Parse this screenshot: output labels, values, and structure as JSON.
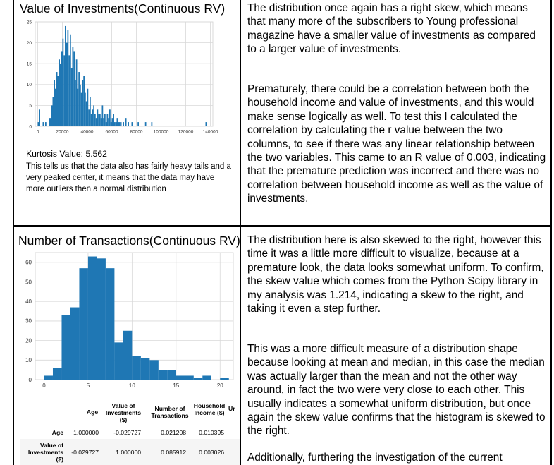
{
  "cells": {
    "investments_title": "Value of Investments(Continuous RV)",
    "kurtosis_label": "Kurtosis Value: 5.562",
    "kurtosis_note": "This tells us that the data also has fairly heavy tails and a very peaked center, it means that the data may have more outliers then a normal distribution",
    "investments_para1": "The distribution once again has a right skew, which means that many more of the subscribers to Young professional magazine have a smaller value of investments as compared to a larger value of investments.",
    "investments_para2": "Prematurely, there could be a correlation between both the household income and value of investments, and this would make sense logically as well. To test this I calculated the correlation by calculating the r value between the two columns, to see if there was any linear relationship between the two variables. This came to an R value of 0.003, indicating that the premature prediction was incorrect and there was no correlation between household income as well as the value of investments.",
    "transactions_title": "Number of Transactions(Continuous RV)",
    "transactions_para1": "The distribution here is also skewed to the right, however this time it was a little more difficult to visualize, because at a premature look, the data looks somewhat uniform. To confirm, the skew value which comes from the Python Scipy library in my analysis was 1.214, indicating a skew to the right, and taking it even a step further.",
    "transactions_para2": "This was a more difficult measure of a distribution shape because looking at mean and median, in this case the median was actually larger than the mean and not the other way around, in fact the two were very close to each other. This usually indicates a somewhat uniform distribution, but once again the skew value confirms that the histogram is skewed to the right.",
    "transactions_para3": "Additionally, furthering the investigation of the current"
  },
  "colors": {
    "bar": "#1f77b4",
    "grid": "#d9d9d9",
    "border": "#000000"
  },
  "chart_data": [
    {
      "type": "bar",
      "title": "",
      "xlabel": "",
      "ylabel": "",
      "xlim": [
        -2000,
        142000
      ],
      "ylim": [
        0,
        25
      ],
      "grid": true,
      "x_ticks": [
        "0",
        "20000",
        "40000",
        "60000",
        "80000",
        "100000",
        "120000",
        "140000"
      ],
      "y_ticks": [
        "0",
        "5",
        "10",
        "15",
        "20",
        "25"
      ],
      "bin_width": 1000,
      "bins": [
        [
          0,
          1
        ],
        [
          1000,
          4
        ],
        [
          4000,
          1
        ],
        [
          6000,
          1
        ],
        [
          9000,
          2
        ],
        [
          10000,
          2
        ],
        [
          11000,
          5
        ],
        [
          12000,
          7
        ],
        [
          13000,
          11
        ],
        [
          14000,
          9
        ],
        [
          15000,
          13
        ],
        [
          16000,
          12
        ],
        [
          17000,
          16
        ],
        [
          18000,
          15
        ],
        [
          19000,
          18
        ],
        [
          20000,
          21
        ],
        [
          21000,
          17
        ],
        [
          22000,
          24
        ],
        [
          23000,
          20
        ],
        [
          24000,
          23
        ],
        [
          25000,
          17
        ],
        [
          26000,
          22
        ],
        [
          27000,
          14
        ],
        [
          28000,
          19
        ],
        [
          29000,
          18
        ],
        [
          30000,
          11
        ],
        [
          31000,
          16
        ],
        [
          32000,
          9
        ],
        [
          33000,
          13
        ],
        [
          34000,
          10
        ],
        [
          35000,
          8
        ],
        [
          36000,
          11
        ],
        [
          37000,
          12
        ],
        [
          38000,
          8
        ],
        [
          39000,
          6
        ],
        [
          40000,
          9
        ],
        [
          41000,
          4
        ],
        [
          42000,
          7
        ],
        [
          43000,
          3
        ],
        [
          44000,
          4
        ],
        [
          45000,
          5
        ],
        [
          46000,
          3
        ],
        [
          47000,
          2
        ],
        [
          48000,
          4
        ],
        [
          49000,
          3
        ],
        [
          50000,
          3
        ],
        [
          51000,
          2
        ],
        [
          52000,
          5
        ],
        [
          53000,
          2
        ],
        [
          54000,
          3
        ],
        [
          55000,
          1
        ],
        [
          56000,
          3
        ],
        [
          57000,
          2
        ],
        [
          58000,
          4
        ],
        [
          59000,
          1
        ],
        [
          60000,
          2
        ],
        [
          61000,
          3
        ],
        [
          62000,
          1
        ],
        [
          63000,
          1
        ],
        [
          64000,
          2
        ],
        [
          65000,
          1
        ],
        [
          66000,
          1
        ],
        [
          67000,
          1
        ],
        [
          69000,
          1
        ],
        [
          71000,
          2
        ],
        [
          73000,
          1
        ],
        [
          76000,
          1
        ],
        [
          81000,
          1
        ],
        [
          87000,
          1
        ],
        [
          92000,
          1
        ],
        [
          136000,
          1
        ]
      ]
    },
    {
      "type": "bar",
      "title": "",
      "xlabel": "",
      "ylabel": "",
      "xlim": [
        -1,
        21.5
      ],
      "ylim": [
        0,
        65
      ],
      "grid": true,
      "x_ticks": [
        "0",
        "5",
        "10",
        "15",
        "20"
      ],
      "y_ticks": [
        "0",
        "10",
        "20",
        "30",
        "40",
        "50",
        "60"
      ],
      "bin_width": 1,
      "bins": [
        [
          0,
          2
        ],
        [
          1,
          6
        ],
        [
          2,
          33
        ],
        [
          3,
          37
        ],
        [
          4,
          57
        ],
        [
          5,
          63
        ],
        [
          6,
          62
        ],
        [
          7,
          57
        ],
        [
          8,
          19
        ],
        [
          9,
          25
        ],
        [
          10,
          12
        ],
        [
          11,
          11
        ],
        [
          12,
          10
        ],
        [
          13,
          5
        ],
        [
          14,
          5
        ],
        [
          15,
          2
        ],
        [
          16,
          2
        ],
        [
          17,
          1
        ],
        [
          18,
          2
        ],
        [
          20,
          1
        ]
      ]
    }
  ],
  "corr_table": {
    "headers": [
      "Age",
      "Value of Investments ($)",
      "Number of Transactions",
      "Household Income ($)",
      "Ur"
    ],
    "rows": [
      {
        "label": "Age",
        "values": [
          "1.000000",
          "-0.029727",
          "0.021208",
          "0.010395"
        ]
      },
      {
        "label": "Value of Investments ($)",
        "values": [
          "-0.029727",
          "1.000000",
          "0.085912",
          "0.003026"
        ]
      }
    ]
  }
}
